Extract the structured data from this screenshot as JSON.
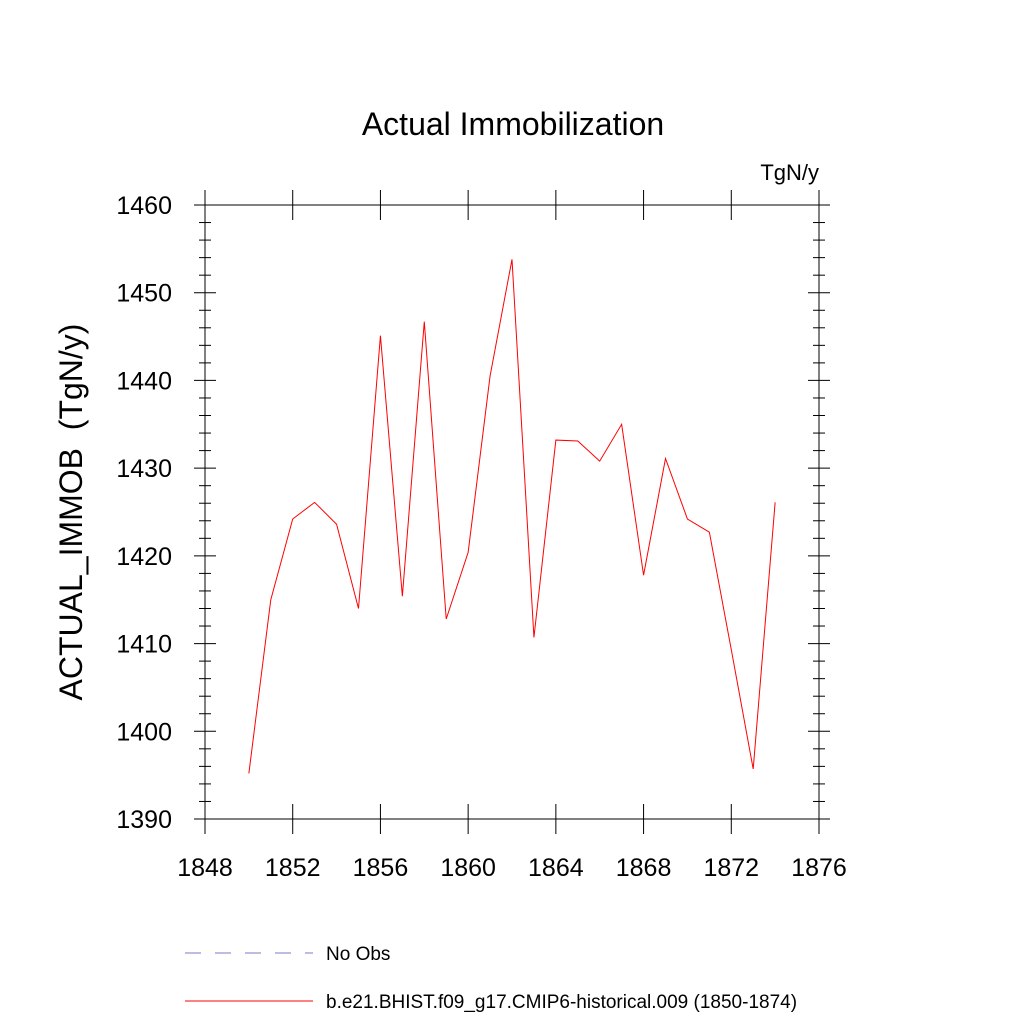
{
  "chart_data": {
    "type": "line",
    "title": "Actual Immobilization",
    "units_label": "TgN/y",
    "xlabel": "",
    "ylabel": "ACTUAL_IMMOB  (TgN/y)",
    "xlim": [
      1848,
      1876
    ],
    "ylim": [
      1390,
      1460
    ],
    "x_ticks": [
      1848,
      1852,
      1856,
      1860,
      1864,
      1868,
      1872,
      1876
    ],
    "y_ticks": [
      1390,
      1400,
      1410,
      1420,
      1430,
      1440,
      1450,
      1460
    ],
    "x_tick_labels": [
      "1848",
      "1852",
      "1856",
      "1860",
      "1864",
      "1868",
      "1872",
      "1876"
    ],
    "y_tick_labels": [
      "1390",
      "1400",
      "1410",
      "1420",
      "1430",
      "1440",
      "1450",
      "1460"
    ],
    "grid": false,
    "legend_position": "bottom",
    "series": [
      {
        "name": "b.e21.BHIST.f09_g17.CMIP6-historical.009 (1850-1874)",
        "color": "#ff0000",
        "style": "solid",
        "x": [
          1850,
          1851,
          1852,
          1853,
          1854,
          1855,
          1856,
          1857,
          1858,
          1859,
          1860,
          1861,
          1862,
          1863,
          1864,
          1865,
          1866,
          1867,
          1868,
          1869,
          1870,
          1871,
          1872,
          1873,
          1874
        ],
        "y": [
          1395.2,
          1415.0,
          1424.2,
          1426.1,
          1423.6,
          1414.0,
          1445.1,
          1415.4,
          1446.7,
          1412.8,
          1420.4,
          1440.5,
          1453.8,
          1410.7,
          1433.2,
          1433.1,
          1430.8,
          1435.0,
          1417.8,
          1431.1,
          1424.2,
          1422.7,
          1409.3,
          1395.7,
          1426.1
        ]
      }
    ],
    "legend": [
      {
        "label": "No Obs",
        "color": "#7b78c8",
        "style": "dashed"
      },
      {
        "label": "b.e21.BHIST.f09_g17.CMIP6-historical.009 (1850-1874)",
        "color": "#ff0000",
        "style": "solid"
      }
    ]
  }
}
